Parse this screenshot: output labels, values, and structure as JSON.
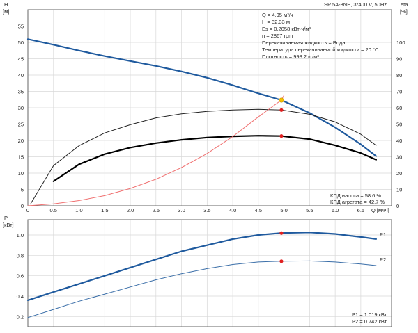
{
  "header": {
    "model": "SP 5A-8NE, 3*400 V, 50Hz"
  },
  "info": [
    "Q = 4.95 м³/ч",
    "H = 32.33 м",
    "Es = 0.2058 кВт·ч/м³",
    "n = 2867 rpm",
    "Перекачиваемая жидкость = Вода",
    "Температура перекачиваемой жидкости = 20 °C",
    "Плотность = 998.2 кг/м³"
  ],
  "efficiency_text": [
    "КПД насоса = 58.6 %",
    "КПД агрегата = 42.7 %"
  ],
  "power_text": [
    "P1 = 1.019 кВт",
    "P2 = 0.742 кВт"
  ],
  "colors": {
    "grid": "#d8d8d8",
    "frame": "#666666",
    "head_curve": "#1f5a9e",
    "pump_eff_curve": "#222222",
    "unit_eff_curve": "#000000",
    "system_curve": "#f07070",
    "duty_point": "#e02020",
    "intersection_point": "#f5c000",
    "power_p1": "#1f5a9e",
    "power_p2": "#3a6ea8"
  },
  "chart_data": [
    {
      "type": "line",
      "title": "",
      "xlabel": "Q [м³/ч]",
      "ylabel": "H [м]",
      "y2label": "eta [%]",
      "xlim": [
        0,
        7.1
      ],
      "ylim": [
        0,
        60
      ],
      "y2lim": [
        0,
        120
      ],
      "x_ticks": [
        "0",
        "0.5",
        "1.0",
        "1.5",
        "2.0",
        "2.5",
        "3.0",
        "3.5",
        "4.0",
        "4.5",
        "5.0",
        "5.5",
        "6.0",
        "6.5"
      ],
      "y_ticks": [
        "0",
        "5",
        "10",
        "15",
        "20",
        "25",
        "30",
        "35",
        "40",
        "45",
        "50",
        "55"
      ],
      "y2_ticks": [
        "0",
        "10",
        "20",
        "30",
        "40",
        "50",
        "60",
        "70",
        "80",
        "90",
        "100"
      ],
      "grid": true,
      "series": [
        {
          "key": "head",
          "axis": "left",
          "x": [
            0,
            0.5,
            1.0,
            1.5,
            2.0,
            2.5,
            3.0,
            3.5,
            4.0,
            4.5,
            4.95,
            5.5,
            6.0,
            6.5,
            6.8
          ],
          "y": [
            51,
            49.3,
            47.5,
            45.8,
            44.3,
            42.8,
            41.1,
            39.2,
            36.9,
            34.4,
            32.33,
            28.4,
            24.0,
            18.8,
            15.2
          ]
        },
        {
          "key": "head_thin",
          "axis": "left",
          "x": [
            0,
            0.5
          ],
          "y": [
            51,
            49.3
          ]
        },
        {
          "key": "pump_eff",
          "axis": "right",
          "x": [
            0.05,
            0.5,
            1.0,
            1.5,
            2.0,
            2.5,
            3.0,
            3.5,
            4.0,
            4.5,
            4.95,
            5.5,
            6.0,
            6.5,
            6.8
          ],
          "y": [
            1,
            24.6,
            36.8,
            44.6,
            49.6,
            53.8,
            56.3,
            57.8,
            58.6,
            59.0,
            58.6,
            56.0,
            51.3,
            43.8,
            37.0
          ]
        },
        {
          "key": "unit_eff",
          "axis": "right",
          "x": [
            0.5,
            1.0,
            1.5,
            2.0,
            2.5,
            3.0,
            3.5,
            4.0,
            4.5,
            4.95,
            5.5,
            6.0,
            6.5,
            6.8
          ],
          "y": [
            15,
            25.4,
            31.6,
            35.6,
            38.4,
            40.4,
            41.8,
            42.5,
            42.9,
            42.7,
            40.8,
            37.0,
            32.3,
            28.2
          ]
        },
        {
          "key": "system",
          "axis": "left",
          "x": [
            0,
            0.5,
            1.0,
            1.5,
            2.0,
            2.5,
            3.0,
            3.5,
            4.0,
            4.5,
            4.95,
            5.0
          ],
          "y": [
            0,
            0.6,
            1.6,
            3.1,
            5.3,
            8.1,
            11.7,
            16.0,
            21.2,
            27.2,
            32.33,
            33.8
          ]
        }
      ],
      "points": [
        {
          "key": "duty_head",
          "x": 4.95,
          "y": 32.33,
          "axis": "left",
          "color": "intersection"
        },
        {
          "key": "duty_pump_eff",
          "x": 4.95,
          "y": 58.6,
          "axis": "right",
          "color": "duty"
        },
        {
          "key": "duty_unit_eff",
          "x": 4.95,
          "y": 42.7,
          "axis": "right",
          "color": "duty"
        }
      ]
    },
    {
      "type": "line",
      "title": "",
      "xlabel": "",
      "ylabel": "P [кВт]",
      "xlim": [
        0,
        7.1
      ],
      "ylim": [
        0.1,
        1.15
      ],
      "y_ticks": [
        "0.2",
        "0.4",
        "0.6",
        "0.8",
        "1.0"
      ],
      "grid": true,
      "series": [
        {
          "key": "p1",
          "name": "P1",
          "x": [
            0,
            0.5,
            1.0,
            1.5,
            2.0,
            2.5,
            3.0,
            3.5,
            4.0,
            4.5,
            4.95,
            5.5,
            6.0,
            6.5,
            6.8
          ],
          "y": [
            0.36,
            0.44,
            0.52,
            0.6,
            0.68,
            0.76,
            0.84,
            0.9,
            0.96,
            1.0,
            1.019,
            1.025,
            1.01,
            0.98,
            0.96
          ]
        },
        {
          "key": "p2",
          "name": "P2",
          "x": [
            0,
            0.5,
            1.0,
            1.5,
            2.0,
            2.5,
            3.0,
            3.5,
            4.0,
            4.5,
            4.95,
            5.5,
            6.0,
            6.5,
            6.8
          ],
          "y": [
            0.19,
            0.27,
            0.35,
            0.42,
            0.49,
            0.56,
            0.62,
            0.67,
            0.71,
            0.735,
            0.742,
            0.745,
            0.735,
            0.715,
            0.7
          ]
        }
      ],
      "points": [
        {
          "key": "duty_p1",
          "x": 4.95,
          "y": 1.019,
          "color": "duty"
        },
        {
          "key": "duty_p2",
          "x": 4.95,
          "y": 0.742,
          "color": "duty"
        }
      ]
    }
  ]
}
